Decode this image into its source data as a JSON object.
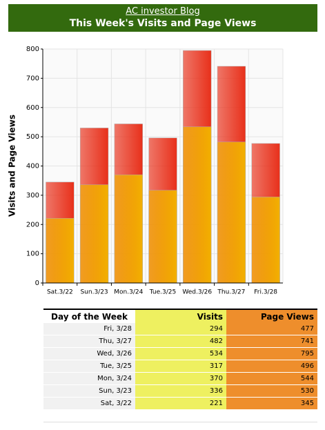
{
  "header": {
    "link": "AC investor Blog",
    "title": "This Week's Visits and Page Views"
  },
  "chart_data": {
    "type": "bar",
    "y_label": "Visits and Page Views",
    "categories": [
      "Sat.3/22",
      "Sun.3/23",
      "Mon.3/24",
      "Tue.3/25",
      "Wed.3/26",
      "Thu.3/27",
      "Fri.3/28"
    ],
    "series": [
      {
        "color": "#e8301a",
        "values": [
          345,
          530,
          544,
          496,
          795,
          741,
          477
        ]
      },
      {
        "color": "#f2b000",
        "values": [
          221,
          336,
          370,
          317,
          534,
          482,
          294
        ]
      }
    ],
    "ylim": [
      0,
      800
    ],
    "yticks": [
      0,
      100,
      200,
      300,
      400,
      500,
      600,
      700,
      800
    ],
    "grid": true
  },
  "table": {
    "columns": [
      "Day of the Week",
      "Visits",
      "Page Views"
    ],
    "rows": [
      [
        "Fri, 3/28",
        294,
        477
      ],
      [
        "Thu, 3/27",
        482,
        741
      ],
      [
        "Wed, 3/26",
        534,
        795
      ],
      [
        "Tue, 3/25",
        317,
        496
      ],
      [
        "Mon, 3/24",
        370,
        544
      ],
      [
        "Sun, 3/23",
        336,
        530
      ],
      [
        "Sat, 3/22",
        221,
        345
      ]
    ]
  }
}
